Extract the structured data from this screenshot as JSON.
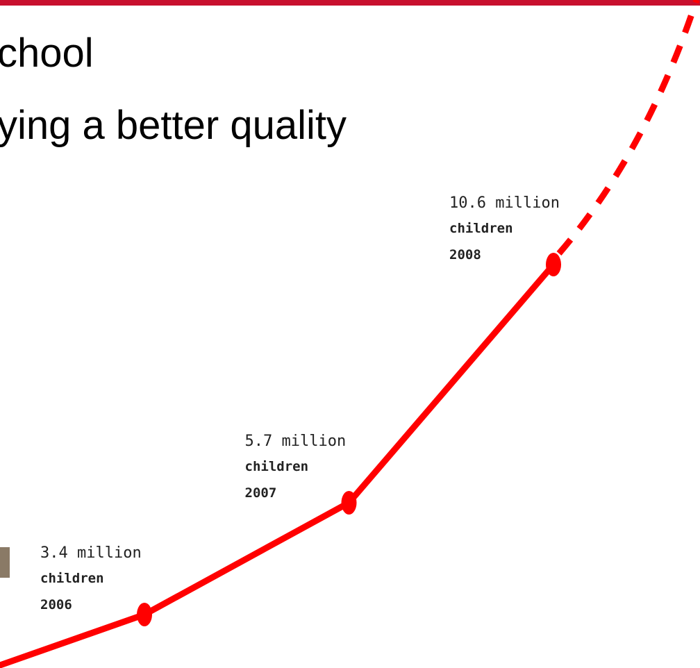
{
  "slide": {
    "lines": [
      "chool",
      "ying a better quality"
    ]
  },
  "chart_data": {
    "type": "line",
    "x": [
      2006,
      2007,
      2008
    ],
    "series": [
      {
        "name": "children",
        "color": "#ff0000",
        "values": [
          3.4,
          5.7,
          10.6
        ],
        "value_labels": [
          "3.4 million",
          "5.7 million",
          "10.6 million"
        ]
      }
    ]
  }
}
